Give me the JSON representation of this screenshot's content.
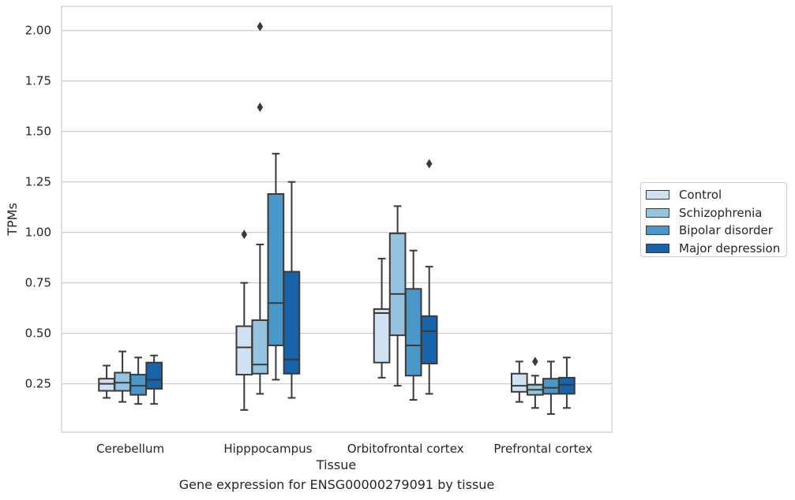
{
  "chart_data": {
    "type": "box",
    "caption": "Gene expression for ENSG00000279091 by tissue",
    "xlabel": "Tissue",
    "ylabel": "TPMs",
    "ylim": [
      0.01,
      2.12
    ],
    "yticks": [
      "0.25",
      "0.50",
      "0.75",
      "1.00",
      "1.25",
      "1.50",
      "1.75",
      "2.00"
    ],
    "grid": "horizontal",
    "legend_position": "right",
    "categories": [
      "Cerebellum",
      "Hipppocampus",
      "Orbitofrontal cortex",
      "Prefrontal cortex"
    ],
    "series": [
      {
        "name": "Control",
        "color": "#d0e1f2",
        "boxes": [
          {
            "whislo": 0.18,
            "q1": 0.215,
            "med": 0.25,
            "q3": 0.275,
            "whishi": 0.34,
            "fliers": []
          },
          {
            "whislo": 0.12,
            "q1": 0.295,
            "med": 0.43,
            "q3": 0.535,
            "whishi": 0.75,
            "fliers": [
              0.99
            ]
          },
          {
            "whislo": 0.28,
            "q1": 0.355,
            "med": 0.6,
            "q3": 0.62,
            "whishi": 0.87,
            "fliers": []
          },
          {
            "whislo": 0.16,
            "q1": 0.21,
            "med": 0.24,
            "q3": 0.3,
            "whishi": 0.36,
            "fliers": []
          }
        ]
      },
      {
        "name": "Schizophrenia",
        "color": "#94c4df",
        "boxes": [
          {
            "whislo": 0.16,
            "q1": 0.215,
            "med": 0.255,
            "q3": 0.305,
            "whishi": 0.41,
            "fliers": []
          },
          {
            "whislo": 0.2,
            "q1": 0.3,
            "med": 0.345,
            "q3": 0.565,
            "whishi": 0.94,
            "fliers": [
              1.62,
              2.02
            ]
          },
          {
            "whislo": 0.24,
            "q1": 0.49,
            "med": 0.695,
            "q3": 0.995,
            "whishi": 1.13,
            "fliers": []
          },
          {
            "whislo": 0.13,
            "q1": 0.195,
            "med": 0.22,
            "q3": 0.245,
            "whishi": 0.29,
            "fliers": [
              0.36
            ]
          }
        ]
      },
      {
        "name": "Bipolar disorder",
        "color": "#4a98c9",
        "boxes": [
          {
            "whislo": 0.15,
            "q1": 0.195,
            "med": 0.24,
            "q3": 0.295,
            "whishi": 0.38,
            "fliers": []
          },
          {
            "whislo": 0.27,
            "q1": 0.44,
            "med": 0.65,
            "q3": 1.19,
            "whishi": 1.39,
            "fliers": []
          },
          {
            "whislo": 0.17,
            "q1": 0.29,
            "med": 0.44,
            "q3": 0.72,
            "whishi": 0.91,
            "fliers": []
          },
          {
            "whislo": 0.1,
            "q1": 0.2,
            "med": 0.23,
            "q3": 0.275,
            "whishi": 0.36,
            "fliers": []
          }
        ]
      },
      {
        "name": "Major depression",
        "color": "#1764ab",
        "boxes": [
          {
            "whislo": 0.15,
            "q1": 0.225,
            "med": 0.27,
            "q3": 0.355,
            "whishi": 0.39,
            "fliers": []
          },
          {
            "whislo": 0.18,
            "q1": 0.3,
            "med": 0.37,
            "q3": 0.805,
            "whishi": 1.25,
            "fliers": []
          },
          {
            "whislo": 0.2,
            "q1": 0.35,
            "med": 0.51,
            "q3": 0.585,
            "whishi": 0.83,
            "fliers": [
              1.34
            ]
          },
          {
            "whislo": 0.13,
            "q1": 0.2,
            "med": 0.245,
            "q3": 0.28,
            "whishi": 0.38,
            "fliers": []
          }
        ]
      }
    ]
  }
}
